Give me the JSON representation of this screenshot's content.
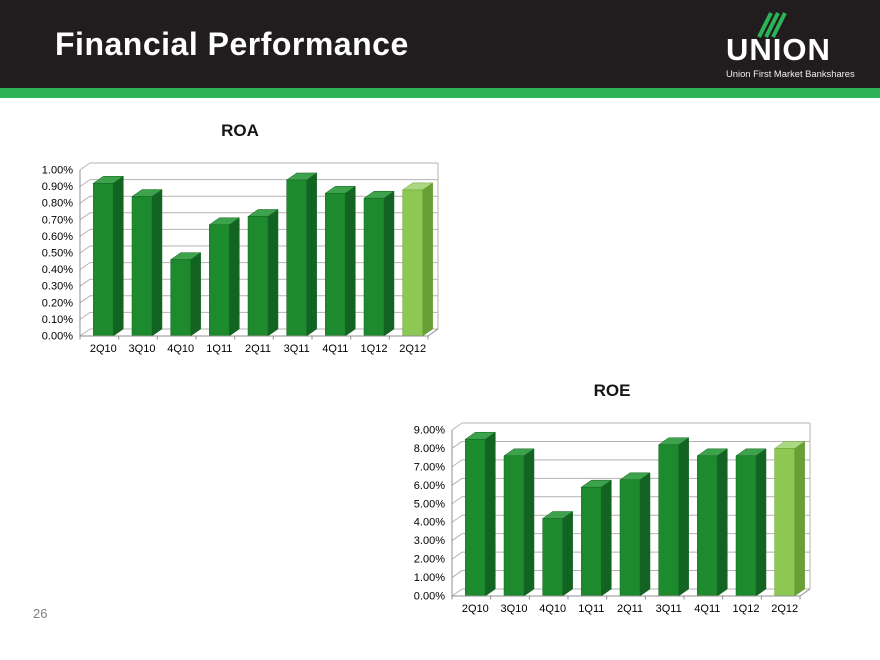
{
  "header": {
    "title": "Financial Performance"
  },
  "logo": {
    "name": "UNION",
    "tagline": "Union First Market Bankshares"
  },
  "page_number": "26",
  "colors": {
    "header_bg": "#211d1e",
    "accent_green": "#2db357",
    "bar_front": "#1e8a2e",
    "bar_side": "#136422",
    "bar_top": "#3ca24b",
    "bar_highlight_front": "#8dc853",
    "bar_highlight_side": "#699f37",
    "bar_highlight_top": "#abd983",
    "grid": "#b5b2b2",
    "axis": "#8f8f8f",
    "tick_text": "#000000"
  },
  "chart_data": [
    {
      "type": "bar",
      "style": "3d-column",
      "title": "ROA",
      "categories": [
        "2Q10",
        "3Q10",
        "4Q10",
        "1Q11",
        "2Q11",
        "3Q11",
        "4Q11",
        "1Q12",
        "2Q12"
      ],
      "values": [
        0.92,
        0.84,
        0.46,
        0.67,
        0.72,
        0.94,
        0.86,
        0.83,
        0.88
      ],
      "unit": "%",
      "ylim": [
        0,
        1.0
      ],
      "yticks": [
        "0.00%",
        "0.10%",
        "0.20%",
        "0.30%",
        "0.40%",
        "0.50%",
        "0.60%",
        "0.70%",
        "0.80%",
        "0.90%",
        "1.00%"
      ],
      "grid": true,
      "legend": "none",
      "highlight_last_bar": true
    },
    {
      "type": "bar",
      "style": "3d-column",
      "title": "ROE",
      "categories": [
        "2Q10",
        "3Q10",
        "4Q10",
        "1Q11",
        "2Q11",
        "3Q11",
        "4Q11",
        "1Q12",
        "2Q12"
      ],
      "values": [
        8.5,
        7.6,
        4.2,
        5.9,
        6.3,
        8.2,
        7.6,
        7.6,
        8.0
      ],
      "unit": "%",
      "ylim": [
        0,
        9.0
      ],
      "yticks": [
        "0.00%",
        "1.00%",
        "2.00%",
        "3.00%",
        "4.00%",
        "5.00%",
        "6.00%",
        "7.00%",
        "8.00%",
        "9.00%"
      ],
      "grid": true,
      "legend": "none",
      "highlight_last_bar": true
    }
  ]
}
